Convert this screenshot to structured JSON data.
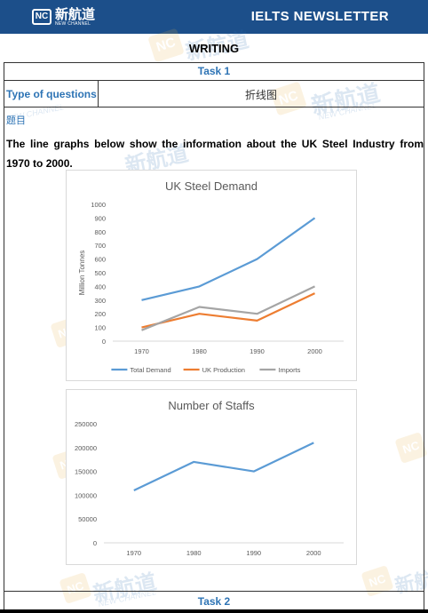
{
  "header": {
    "logo_badge": "NC",
    "logo_cn": "新航道",
    "logo_en": "NEW CHANNEL",
    "title": "IELTS NEWSLETTER"
  },
  "watermark": {
    "badge": "NC",
    "cn": "新航道",
    "en": "NEW CHANNEL"
  },
  "section_title": "WRITING",
  "task1": {
    "label": "Task 1",
    "type_label": "Type of questions",
    "type_value": "折线图",
    "question_label": "题目",
    "prompt": "The line graphs below show the information about the UK Steel Industry from 1970 to 2000."
  },
  "task2": {
    "label": "Task 2"
  },
  "colors": {
    "header_bg": "#1c4f8a",
    "accent_text": "#2e74b5",
    "total_demand": "#5b9bd5",
    "uk_production": "#ed7d31",
    "imports": "#a5a5a5",
    "staff_line": "#5b9bd5"
  },
  "chart_data": [
    {
      "type": "line",
      "title": "UK Steel Demand",
      "ylabel": "Million Tonnes",
      "xlabel": "",
      "x": [
        "1970",
        "1980",
        "1990",
        "2000"
      ],
      "ylim": [
        0,
        1000
      ],
      "yticks": [
        "0",
        "100",
        "200",
        "300",
        "400",
        "500",
        "600",
        "700",
        "800",
        "900",
        "1000"
      ],
      "grid": false,
      "legend_position": "bottom",
      "series": [
        {
          "name": "Total Demand",
          "values": [
            300,
            400,
            600,
            900
          ],
          "color": "#5b9bd5"
        },
        {
          "name": "UK Production",
          "values": [
            100,
            200,
            150,
            350
          ],
          "color": "#ed7d31"
        },
        {
          "name": "Imports",
          "values": [
            80,
            250,
            200,
            400
          ],
          "color": "#a5a5a5"
        }
      ]
    },
    {
      "type": "line",
      "title": "Number of Staffs",
      "ylabel": "",
      "xlabel": "",
      "x": [
        "1970",
        "1980",
        "1990",
        "2000"
      ],
      "ylim": [
        0,
        250000
      ],
      "yticks": [
        "0",
        "50000",
        "100000",
        "150000",
        "200000",
        "250000"
      ],
      "grid": false,
      "series": [
        {
          "values": [
            110000,
            170000,
            150000,
            210000
          ],
          "color": "#5b9bd5"
        }
      ]
    }
  ]
}
